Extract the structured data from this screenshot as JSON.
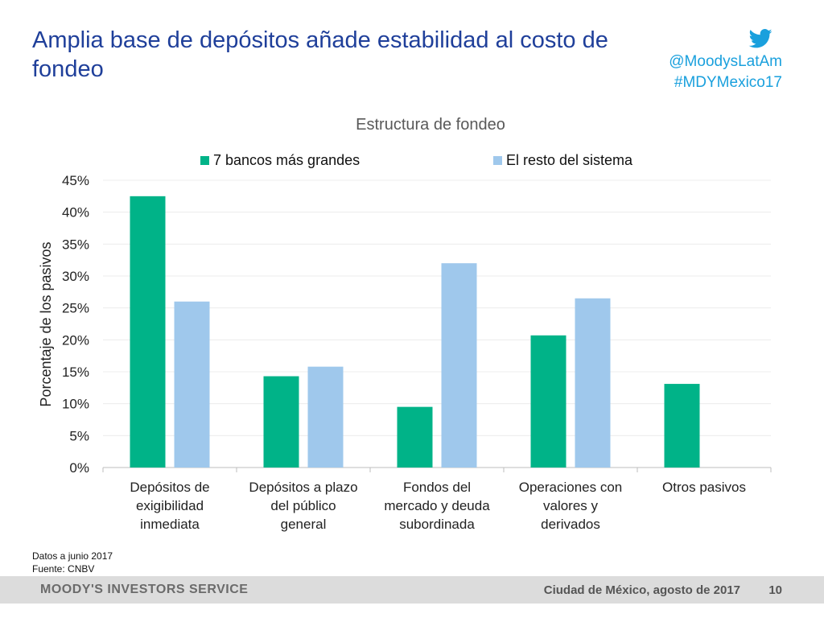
{
  "slide": {
    "title": "Amplia base de depósitos añade estabilidad al costo de fondeo",
    "twitter_handle": "@MoodysLatAm",
    "hashtag": "#MDYMexico17"
  },
  "chart_data": {
    "type": "bar",
    "title": "Estructura de fondeo",
    "ylabel": "Porcentaje de los pasivos",
    "xlabel": "",
    "ylim": [
      0,
      45
    ],
    "ytick_step": 5,
    "ytick_suffix": "%",
    "categories": [
      [
        "Depósitos de",
        "exigibilidad",
        "inmediata"
      ],
      [
        "Depósitos a plazo",
        "del público",
        "general"
      ],
      [
        "Fondos del",
        "mercado y deuda",
        "subordinada"
      ],
      [
        "Operaciones con",
        "valores y",
        "derivados"
      ],
      [
        "Otros pasivos"
      ]
    ],
    "series": [
      {
        "name": "7 bancos más grandes",
        "color": "#00b388",
        "values": [
          42.5,
          14.3,
          9.5,
          20.7,
          13.1
        ]
      },
      {
        "name": "El resto del sistema",
        "color": "#9fc8ec",
        "values": [
          26.0,
          15.8,
          32.0,
          26.5,
          0
        ]
      }
    ],
    "legend_position": "top",
    "grid": true
  },
  "notes": {
    "date": "Datos a junio 2017",
    "source": "Fuente: CNBV"
  },
  "footer": {
    "brand": "MOODY'S INVESTORS SERVICE",
    "location_date": "Ciudad de México, agosto de 2017",
    "page_number": "10"
  },
  "colors": {
    "title_blue": "#1f3f9a",
    "twitter_blue": "#1aa0dd"
  }
}
